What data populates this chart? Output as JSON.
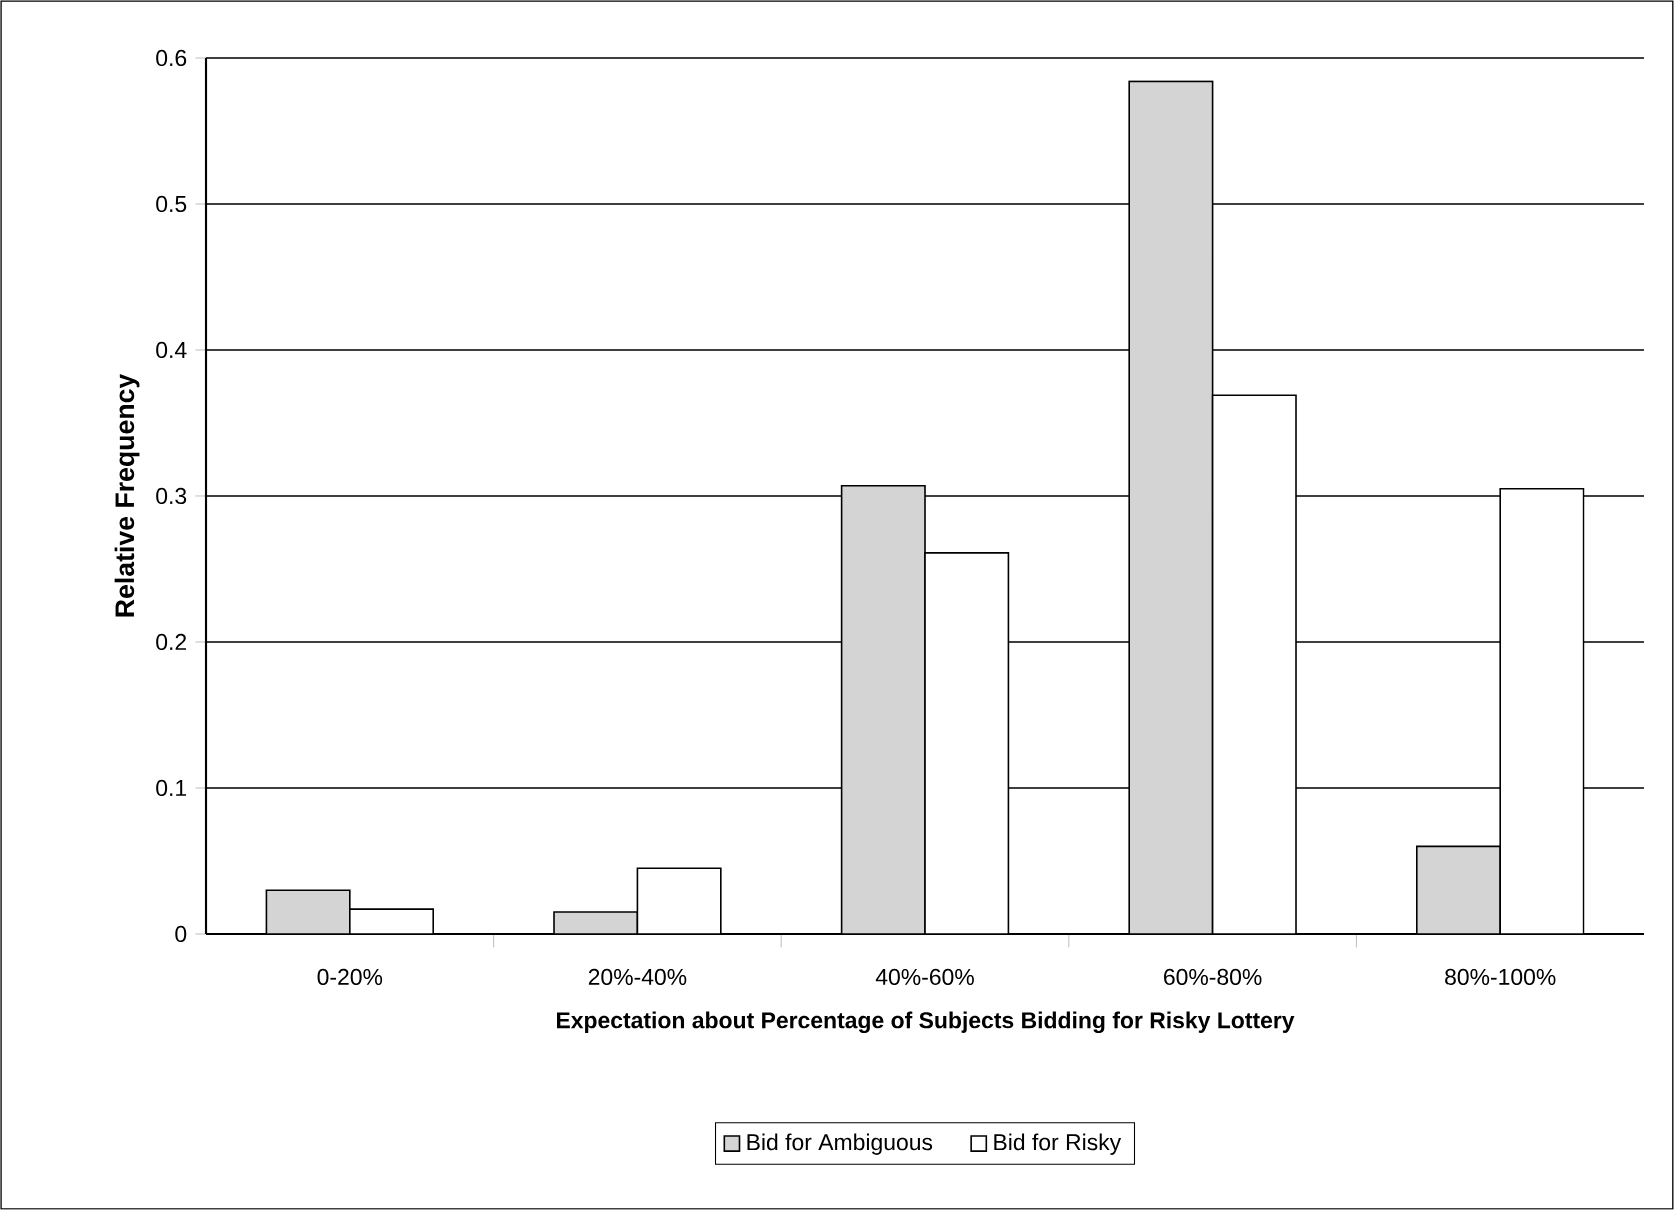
{
  "chart_data": {
    "type": "bar",
    "xlabel": "Expectation about Percentage of Subjects Bidding for Risky Lottery",
    "ylabel": "Relative Frequency",
    "categories": [
      "0-20%",
      "20%-40%",
      "40%-60%",
      "60%-80%",
      "80%-100%"
    ],
    "series": [
      {
        "name": "Bid for Ambiguous",
        "color": "#d4d4d4",
        "values": [
          0.03,
          0.015,
          0.307,
          0.584,
          0.06
        ]
      },
      {
        "name": "Bid for Risky",
        "color": "#ffffff",
        "values": [
          0.017,
          0.045,
          0.261,
          0.369,
          0.305
        ]
      }
    ],
    "ylim": [
      0,
      0.6
    ],
    "yticks": [
      0,
      0.1,
      0.2,
      0.3,
      0.4,
      0.5,
      0.6
    ],
    "grid": "y",
    "legend": "bottom"
  }
}
